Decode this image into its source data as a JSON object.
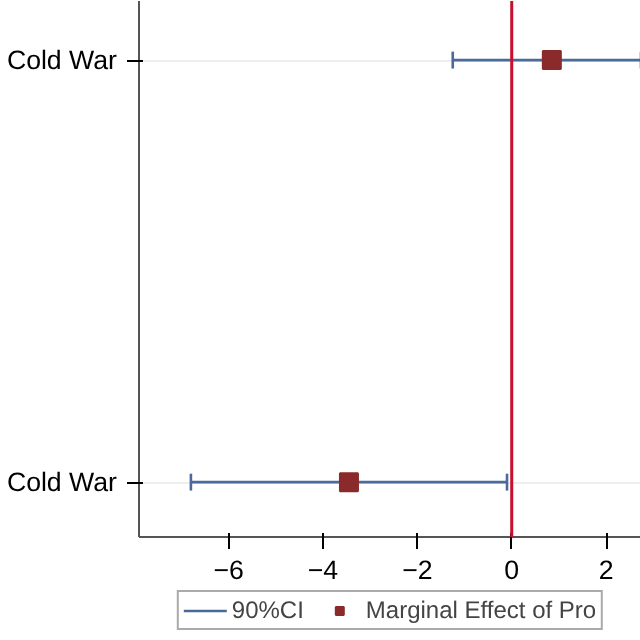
{
  "chart_data": {
    "type": "scatter",
    "orientation": "horizontal",
    "categories": [
      "Cold War",
      "Cold War"
    ],
    "series": [
      {
        "name": "Marginal Effect of Pro",
        "color": "#8b2a2a",
        "values": [
          0.85,
          -3.45
        ],
        "errors": [
          [
            -1.25,
            2.74
          ],
          [
            -6.8,
            -0.1
          ]
        ]
      }
    ],
    "marker": "square",
    "xlim": [
      -7.9,
      2.74
    ],
    "xticks": [
      -6,
      -4,
      -2,
      0,
      2
    ],
    "ref_lines": [
      {
        "axis": "x",
        "value": 0,
        "color": "#c8102e"
      }
    ],
    "annotations": [
      "90%CI"
    ],
    "grid": "y",
    "legend": "bottom"
  }
}
